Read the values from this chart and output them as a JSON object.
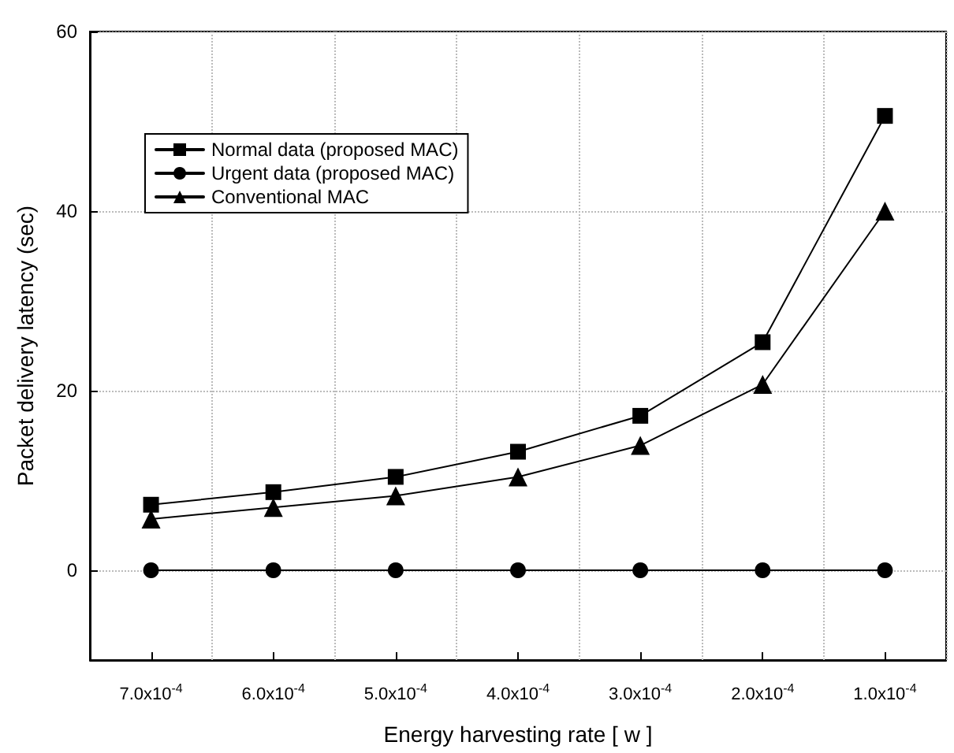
{
  "chart_data": {
    "type": "line",
    "xlabel": "Energy harvesting rate [ w ]",
    "ylabel": "Packet delivery latency (sec)",
    "categories": [
      "7.0x10$^{-4}$",
      "6.0x10$^{-4}$",
      "5.0x10$^{-4}$",
      "4.0x10$^{-4}$",
      "3.0x10$^{-4}$",
      "2.0x10$^{-4}$",
      "1.0x10$^{-4}$"
    ],
    "series": [
      {
        "name": "Normal data (proposed MAC)",
        "color": "#000000",
        "marker": "square",
        "values": [
          7.3,
          8.7,
          10.4,
          13.2,
          17.2,
          25.4,
          50.6
        ]
      },
      {
        "name": "Urgent data (proposed MAC)",
        "color": "#000000",
        "marker": "circle",
        "values": [
          0,
          0,
          0,
          0,
          0,
          0,
          0
        ]
      },
      {
        "name": "Conventional MAC",
        "color": "#000000",
        "marker": "triangle",
        "values": [
          5.7,
          7,
          8.3,
          10.4,
          13.9,
          20.7,
          40
        ]
      }
    ],
    "ylim": [
      -10,
      60
    ],
    "yticks": [
      0,
      20,
      40,
      60
    ],
    "grid": true,
    "legend": "top left",
    "line_style": "solid"
  }
}
